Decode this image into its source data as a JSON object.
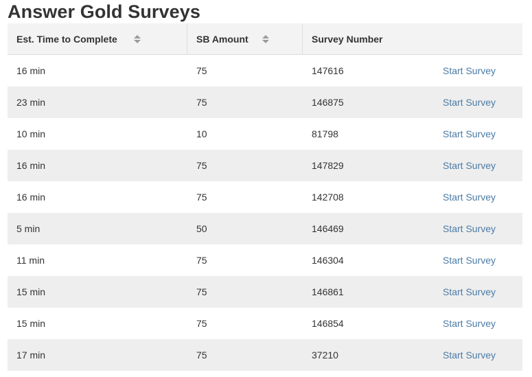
{
  "page": {
    "title": "Answer Gold Surveys"
  },
  "table": {
    "columns": [
      {
        "label": "Est. Time to Complete",
        "sortable": true
      },
      {
        "label": "SB Amount",
        "sortable": true
      },
      {
        "label": "Survey Number",
        "sortable": false
      },
      {
        "label": "",
        "sortable": false
      }
    ],
    "action_label": "Start Survey",
    "rows": [
      {
        "time": "16 min",
        "amount": "75",
        "number": "147616"
      },
      {
        "time": "23 min",
        "amount": "75",
        "number": "146875"
      },
      {
        "time": "10 min",
        "amount": "10",
        "number": "81798"
      },
      {
        "time": "16 min",
        "amount": "75",
        "number": "147829"
      },
      {
        "time": "16 min",
        "amount": "75",
        "number": "142708"
      },
      {
        "time": "5 min",
        "amount": "50",
        "number": "146469"
      },
      {
        "time": "11 min",
        "amount": "75",
        "number": "146304"
      },
      {
        "time": "15 min",
        "amount": "75",
        "number": "146861"
      },
      {
        "time": "15 min",
        "amount": "75",
        "number": "146854"
      },
      {
        "time": "17 min",
        "amount": "75",
        "number": "37210"
      }
    ]
  },
  "colors": {
    "link": "#4a7ba6",
    "header_bg": "#f3f3f3",
    "stripe_bg": "#eeeeee",
    "text": "#333333"
  },
  "icons": {
    "sort": "sort-arrows-icon"
  }
}
